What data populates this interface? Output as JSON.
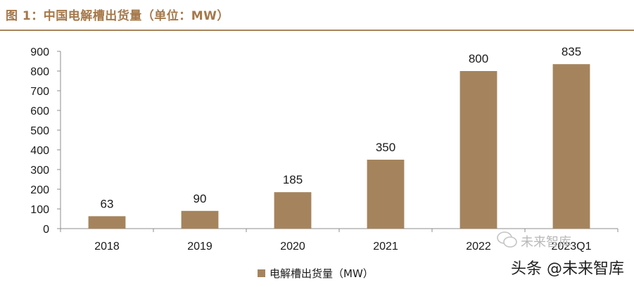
{
  "title": "图 1：中国电解槽出货量（单位：MW）",
  "colors": {
    "bar": "#a5845d",
    "title": "#a5784a",
    "axis": "#8c8c8c"
  },
  "chart_data": {
    "type": "bar",
    "categories": [
      "2018",
      "2019",
      "2020",
      "2021",
      "2022",
      "2023Q1"
    ],
    "series": [
      {
        "name": "电解槽出货量（MW）",
        "values": [
          63,
          90,
          185,
          350,
          800,
          835
        ]
      }
    ],
    "ylim": [
      0,
      900
    ],
    "yticks": [
      0,
      100,
      200,
      300,
      400,
      500,
      600,
      700,
      800,
      900
    ],
    "data_labels": [
      "63",
      "90",
      "185",
      "350",
      "800",
      "835"
    ],
    "grid": false,
    "legend": "bottom"
  },
  "watermark": {
    "text": "头条 @未来智库",
    "faint_text": "未来智库",
    "icon": "wechat-icon"
  }
}
